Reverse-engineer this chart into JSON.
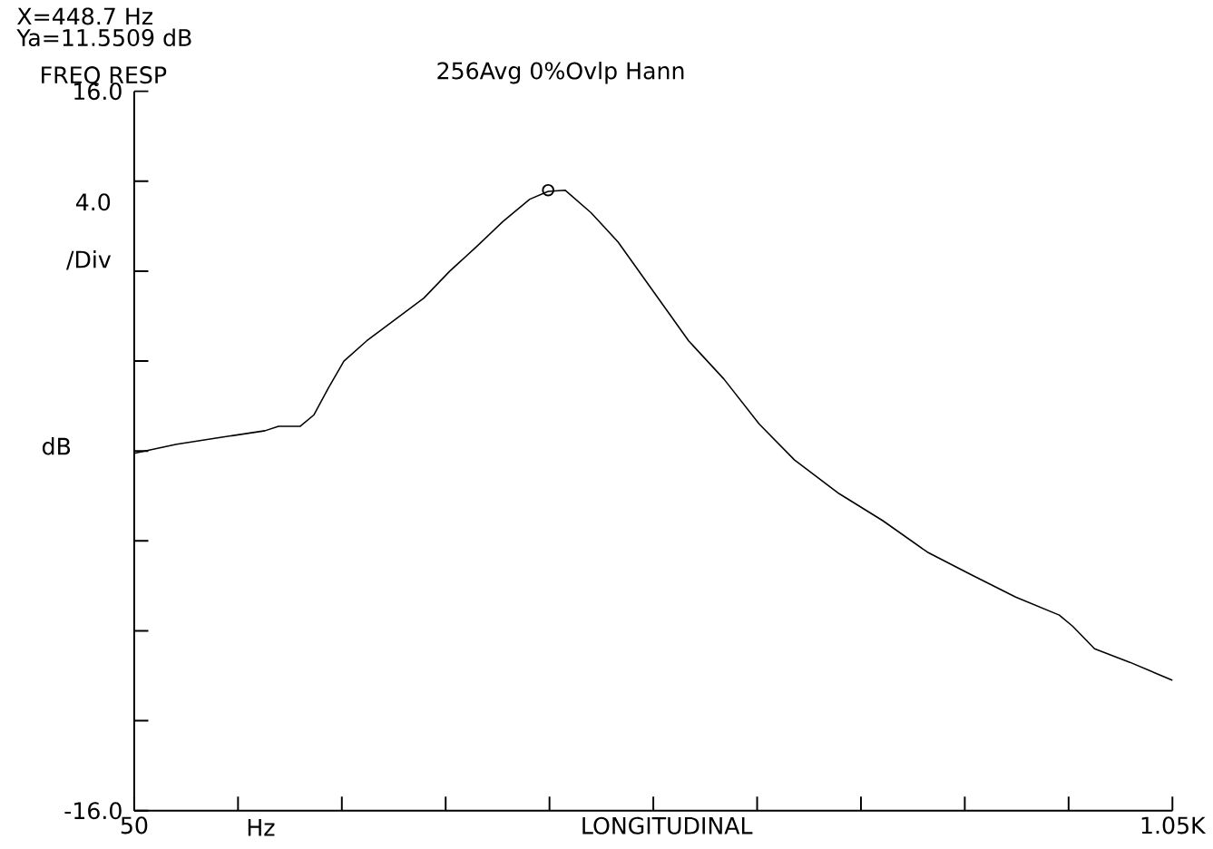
{
  "chart_data": {
    "type": "line",
    "title": "FREQ RESP",
    "subtitle": "256Avg   0%Ovlp   Hann",
    "xlabel": "LONGITUDINAL",
    "ylabel": "dB",
    "annotations": [
      "X=448.7 Hz",
      "Ya=11.5509 dB",
      "4.0 /Div",
      "Hz"
    ],
    "xlim": [
      50,
      1050
    ],
    "ylim": [
      -16,
      16
    ],
    "xticks": [
      {
        "value": 50,
        "label": "50"
      },
      {
        "value": 150,
        "label": null
      },
      {
        "value": 250,
        "label": null
      },
      {
        "value": 350,
        "label": null
      },
      {
        "value": 450,
        "label": null
      },
      {
        "value": 550,
        "label": null
      },
      {
        "value": 650,
        "label": null
      },
      {
        "value": 750,
        "label": null
      },
      {
        "value": 850,
        "label": null
      },
      {
        "value": 950,
        "label": null
      },
      {
        "value": 1050,
        "label": "1.05K"
      }
    ],
    "yticks": [
      {
        "value": -16,
        "label": "-16.0"
      },
      {
        "value": -12,
        "label": null
      },
      {
        "value": -8,
        "label": null
      },
      {
        "value": -4,
        "label": null
      },
      {
        "value": 0,
        "label": null
      },
      {
        "value": 4,
        "label": null
      },
      {
        "value": 8,
        "label": null
      },
      {
        "value": 12,
        "label": null
      },
      {
        "value": 16,
        "label": "16.0"
      }
    ],
    "series": [
      {
        "color": "#000000",
        "marker": "none",
        "x": [
          50,
          91,
          133,
          176,
          189,
          210,
          223,
          237,
          252,
          274,
          303,
          329,
          354,
          380,
          405,
          431,
          448.7,
          465,
          490,
          516,
          550,
          584,
          618,
          652,
          686,
          729,
          771,
          814,
          856,
          899,
          941,
          954,
          975,
          1009,
          1050
        ],
        "values": [
          -0.1,
          0.3,
          0.6,
          0.9,
          1.1,
          1.1,
          1.6,
          2.8,
          4.0,
          4.9,
          5.9,
          6.8,
          8.0,
          9.1,
          10.2,
          11.2,
          11.55,
          11.6,
          10.6,
          9.3,
          7.1,
          4.9,
          3.2,
          1.2,
          -0.4,
          -1.9,
          -3.1,
          -4.5,
          -5.5,
          -6.5,
          -7.3,
          -7.8,
          -8.8,
          -9.4,
          -10.2
        ]
      },
      {
        "type": "scatter",
        "color": "#000000",
        "marker": "circle",
        "x": [
          448.7
        ],
        "values": [
          11.6
        ]
      }
    ]
  }
}
